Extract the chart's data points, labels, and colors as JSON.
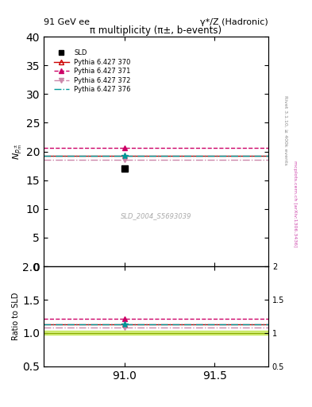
{
  "title_left": "91 GeV ee",
  "title_right": "γ*/Z (Hadronic)",
  "plot_title": "π multiplicity (π±, b-events)",
  "ylabel_main": "N_{p^{±}m}",
  "ylabel_ratio": "Ratio to SLD",
  "watermark": "SLD_2004_S5693039",
  "right_label_top": "Rivet 3.1.10, ≥ 400k events",
  "right_label_bot": "mcplots.cern.ch [arXiv:1306.3436]",
  "xlim": [
    90.55,
    91.8
  ],
  "ylim_main": [
    0,
    40
  ],
  "ylim_ratio": [
    0.5,
    2.0
  ],
  "xticks": [
    91.0,
    91.5
  ],
  "sld_x": 91.0,
  "sld_y": 17.1,
  "pythia_x": 91.0,
  "p370_y": 19.3,
  "p371_y": 20.7,
  "p372_y": 18.5,
  "p376_y": 19.25,
  "p370_ratio": 1.128,
  "p371_ratio": 1.211,
  "p372_ratio": 1.082,
  "p376_ratio": 1.125,
  "color_370": "#cc0000",
  "color_371": "#cc0066",
  "color_372": "#cc88aa",
  "color_376": "#009999",
  "color_sld": "#000000",
  "band_color": "#aadd00",
  "band_alpha": 0.5,
  "band_low": 0.97,
  "band_high": 1.03
}
